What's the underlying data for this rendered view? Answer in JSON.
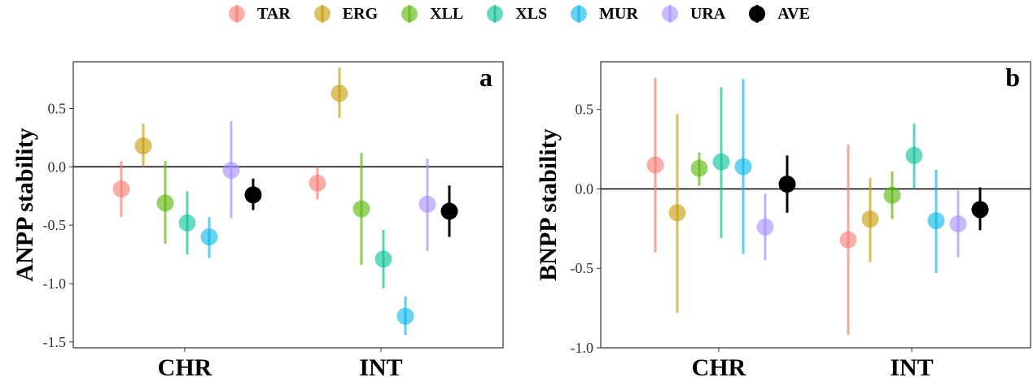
{
  "legend": {
    "items": [
      {
        "label": "TAR",
        "color": "#F8766D"
      },
      {
        "label": "ERG",
        "color": "#C49A00"
      },
      {
        "label": "XLL",
        "color": "#53B400"
      },
      {
        "label": "XLS",
        "color": "#00C094"
      },
      {
        "label": "MUR",
        "color": "#00B6EB"
      },
      {
        "label": "URA",
        "color": "#A58AFF"
      },
      {
        "label": "AVE",
        "color": "#000000"
      }
    ]
  },
  "chart_data": [
    {
      "type": "scatter",
      "title": "",
      "panel_tag": "a",
      "xlabel": "",
      "ylabel": "ANPP stability",
      "categories": [
        "CHR",
        "INT"
      ],
      "ylim": [
        -1.55,
        0.9
      ],
      "yticks": [
        0.5,
        0.0,
        -0.5,
        -1.0,
        -1.5
      ],
      "ytick_labels": [
        "0.5",
        "0.0",
        "-0.5",
        "-1.0",
        "-1.5"
      ],
      "reference_line": 0,
      "series": [
        {
          "name": "TAR",
          "values": [
            -0.19,
            -0.14
          ],
          "lower": [
            -0.43,
            -0.28
          ],
          "upper": [
            0.05,
            0.0
          ]
        },
        {
          "name": "ERG",
          "values": [
            0.18,
            0.63
          ],
          "lower": [
            0.0,
            0.42
          ],
          "upper": [
            0.37,
            0.85
          ]
        },
        {
          "name": "XLL",
          "values": [
            -0.31,
            -0.36
          ],
          "lower": [
            -0.66,
            -0.84
          ],
          "upper": [
            0.05,
            0.12
          ]
        },
        {
          "name": "XLS",
          "values": [
            -0.48,
            -0.79
          ],
          "lower": [
            -0.75,
            -1.04
          ],
          "upper": [
            -0.21,
            -0.54
          ]
        },
        {
          "name": "MUR",
          "values": [
            -0.6,
            -1.28
          ],
          "lower": [
            -0.78,
            -1.44
          ],
          "upper": [
            -0.43,
            -1.11
          ]
        },
        {
          "name": "URA",
          "values": [
            -0.03,
            -0.32
          ],
          "lower": [
            -0.44,
            -0.72
          ],
          "upper": [
            0.39,
            0.07
          ]
        },
        {
          "name": "AVE",
          "values": [
            -0.24,
            -0.38
          ],
          "lower": [
            -0.37,
            -0.6
          ],
          "upper": [
            -0.1,
            -0.16
          ]
        }
      ]
    },
    {
      "type": "scatter",
      "title": "",
      "panel_tag": "b",
      "xlabel": "",
      "ylabel": "BNPP stability",
      "categories": [
        "CHR",
        "INT"
      ],
      "ylim": [
        -1.0,
        0.8
      ],
      "yticks": [
        0.5,
        0.0,
        -0.5,
        -1.0
      ],
      "ytick_labels": [
        "0.5",
        "0.0",
        "-0.5",
        "-1.0"
      ],
      "reference_line": 0,
      "series": [
        {
          "name": "TAR",
          "values": [
            0.15,
            -0.32
          ],
          "lower": [
            -0.4,
            -0.92
          ],
          "upper": [
            0.7,
            0.28
          ]
        },
        {
          "name": "ERG",
          "values": [
            -0.15,
            -0.19
          ],
          "lower": [
            -0.78,
            -0.46
          ],
          "upper": [
            0.47,
            0.07
          ]
        },
        {
          "name": "XLL",
          "values": [
            0.13,
            -0.04
          ],
          "lower": [
            0.02,
            -0.19
          ],
          "upper": [
            0.23,
            0.11
          ]
        },
        {
          "name": "XLS",
          "values": [
            0.17,
            0.21
          ],
          "lower": [
            -0.31,
            0.0
          ],
          "upper": [
            0.64,
            0.41
          ]
        },
        {
          "name": "MUR",
          "values": [
            0.14,
            -0.2
          ],
          "lower": [
            -0.41,
            -0.53
          ],
          "upper": [
            0.69,
            0.12
          ]
        },
        {
          "name": "URA",
          "values": [
            -0.24,
            -0.22
          ],
          "lower": [
            -0.45,
            -0.43
          ],
          "upper": [
            -0.03,
            -0.01
          ]
        },
        {
          "name": "AVE",
          "values": [
            0.03,
            -0.13
          ],
          "lower": [
            -0.15,
            -0.26
          ],
          "upper": [
            0.21,
            0.01
          ]
        }
      ]
    }
  ]
}
